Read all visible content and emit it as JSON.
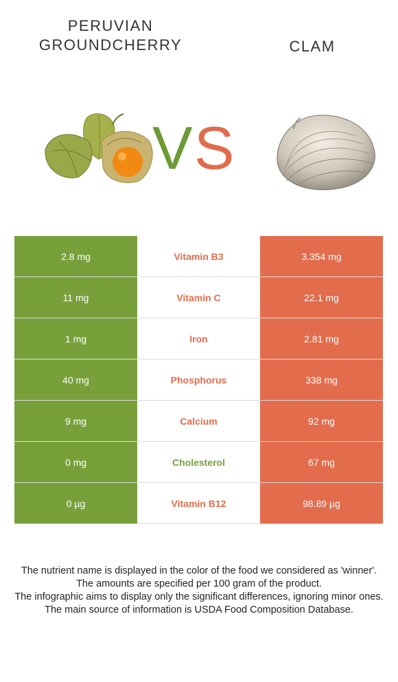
{
  "header": {
    "left_title_line1": "PERUVIAN",
    "left_title_line2": "GROUNDCHERRY",
    "right_title": "CLAM",
    "vs_v": "V",
    "vs_s": "S"
  },
  "colors": {
    "left_winner": "#77a03b",
    "right_winner": "#e36c4d"
  },
  "images": {
    "left": "peruvian-groundcherry-image",
    "right": "clam-image"
  },
  "rows": [
    {
      "left": "2.8 mg",
      "nutrient": "Vitamin B3",
      "right": "3.354 mg",
      "winner_color": "#e36c4d"
    },
    {
      "left": "11 mg",
      "nutrient": "Vitamin C",
      "right": "22.1 mg",
      "winner_color": "#e36c4d"
    },
    {
      "left": "1 mg",
      "nutrient": "Iron",
      "right": "2.81 mg",
      "winner_color": "#e36c4d"
    },
    {
      "left": "40 mg",
      "nutrient": "Phosphorus",
      "right": "338 mg",
      "winner_color": "#e36c4d"
    },
    {
      "left": "9 mg",
      "nutrient": "Calcium",
      "right": "92 mg",
      "winner_color": "#e36c4d"
    },
    {
      "left": "0 mg",
      "nutrient": "Cholesterol",
      "right": "67 mg",
      "winner_color": "#77a03b"
    },
    {
      "left": "0 µg",
      "nutrient": "Vitamin B12",
      "right": "98.89 µg",
      "winner_color": "#e36c4d"
    }
  ],
  "notes": [
    "The nutrient name is displayed in the color of the food we considered as 'winner'.",
    "The amounts are specified per 100 gram of the product.",
    "The infographic aims to display only the significant differences, ignoring minor ones.",
    "The main source of information is USDA Food Composition Database."
  ]
}
